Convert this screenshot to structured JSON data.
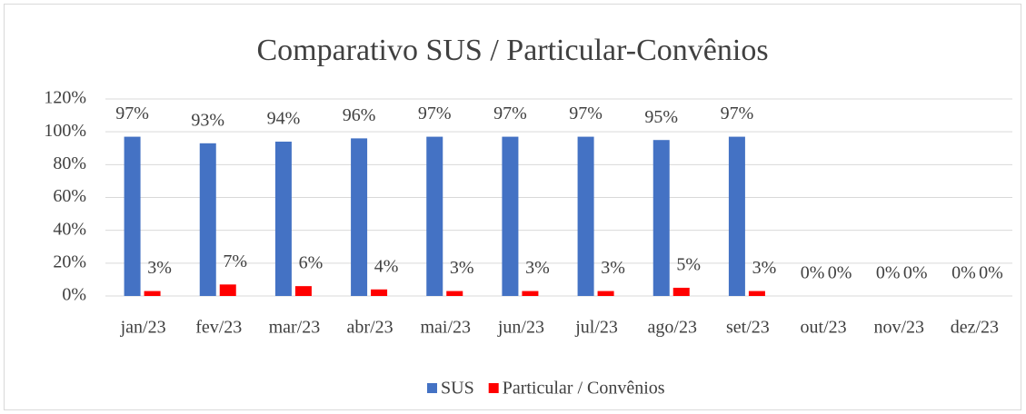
{
  "chart_data": {
    "type": "bar",
    "title": "Comparativo SUS / Particular-Convênios",
    "categories": [
      "jan/23",
      "fev/23",
      "mar/23",
      "abr/23",
      "mai/23",
      "jun/23",
      "jul/23",
      "ago/23",
      "set/23",
      "out/23",
      "nov/23",
      "dez/23"
    ],
    "series": [
      {
        "name": "SUS",
        "color": "#4472c4",
        "values": [
          97,
          93,
          94,
          96,
          97,
          97,
          97,
          95,
          97,
          0,
          0,
          0
        ],
        "value_labels": [
          "97%",
          "93%",
          "94%",
          "96%",
          "97%",
          "97%",
          "97%",
          "95%",
          "97%",
          "0%",
          "0%",
          "0%"
        ]
      },
      {
        "name": "Particular / Convênios",
        "color": "#ff0000",
        "values": [
          3,
          7,
          6,
          4,
          3,
          3,
          3,
          5,
          3,
          0,
          0,
          0
        ],
        "value_labels": [
          "3%",
          "7%",
          "6%",
          "4%",
          "3%",
          "3%",
          "3%",
          "5%",
          "3%",
          "0%",
          "0%",
          "0%"
        ]
      }
    ],
    "ylim": [
      0,
      120
    ],
    "yticks": [
      {
        "value": 0,
        "label": "0%"
      },
      {
        "value": 20,
        "label": "20%"
      },
      {
        "value": 40,
        "label": "40%"
      },
      {
        "value": 60,
        "label": "60%"
      },
      {
        "value": 80,
        "label": "80%"
      },
      {
        "value": 100,
        "label": "100%"
      },
      {
        "value": 120,
        "label": "120%"
      }
    ],
    "grid": true,
    "legend": "bottom"
  }
}
